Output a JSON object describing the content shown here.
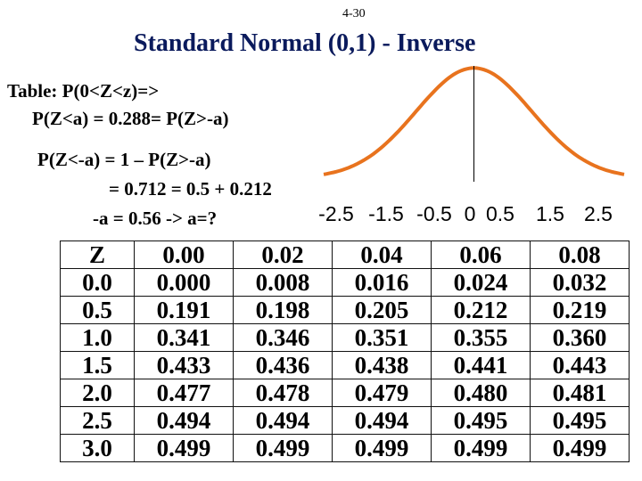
{
  "slide": {
    "number": "4-30",
    "title": "Standard Normal (0,1) - Inverse",
    "accent_color": "#0a1a5c",
    "curve_color": "#e8731e"
  },
  "text_lines": [
    "Table:  P(0<Z<z)=>",
    "P(Z<a) = 0.288= P(Z>-a)",
    "P(Z<-a) = 1 –  P(Z>-a)",
    "= 0.712 = 0.5 + 0.212",
    "-a = 0.56 -> a=?"
  ],
  "chart_data": {
    "type": "line",
    "series": [
      {
        "x": [
          -2.5,
          -2.0,
          -1.5,
          -1.0,
          -0.5,
          0.0,
          0.5,
          1.0,
          1.5,
          2.0,
          2.5
        ],
        "values": [
          0.0175,
          0.054,
          0.1295,
          0.242,
          0.352,
          0.399,
          0.352,
          0.242,
          0.1295,
          0.054,
          0.0175
        ]
      }
    ],
    "tick_labels": [
      "-2.5",
      "-1.5",
      "-0.5",
      "0",
      "0.5",
      "1.5",
      "2.5"
    ],
    "xlim": [
      -2.6,
      2.6
    ],
    "ylim": [
      0,
      0.4
    ],
    "grid": false
  },
  "table": {
    "header": [
      "Z",
      "0.00",
      "0.02",
      "0.04",
      "0.06",
      "0.08"
    ],
    "rows": [
      [
        "0.0",
        "0.000",
        "0.008",
        "0.016",
        "0.024",
        "0.032"
      ],
      [
        "0.5",
        "0.191",
        "0.198",
        "0.205",
        "0.212",
        "0.219"
      ],
      [
        "1.0",
        "0.341",
        "0.346",
        "0.351",
        "0.355",
        "0.360"
      ],
      [
        "1.5",
        "0.433",
        "0.436",
        "0.438",
        "0.441",
        "0.443"
      ],
      [
        "2.0",
        "0.477",
        "0.478",
        "0.479",
        "0.480",
        "0.481"
      ],
      [
        "2.5",
        "0.494",
        "0.494",
        "0.494",
        "0.495",
        "0.495"
      ],
      [
        "3.0",
        "0.499",
        "0.499",
        "0.499",
        "0.499",
        "0.499"
      ]
    ]
  }
}
